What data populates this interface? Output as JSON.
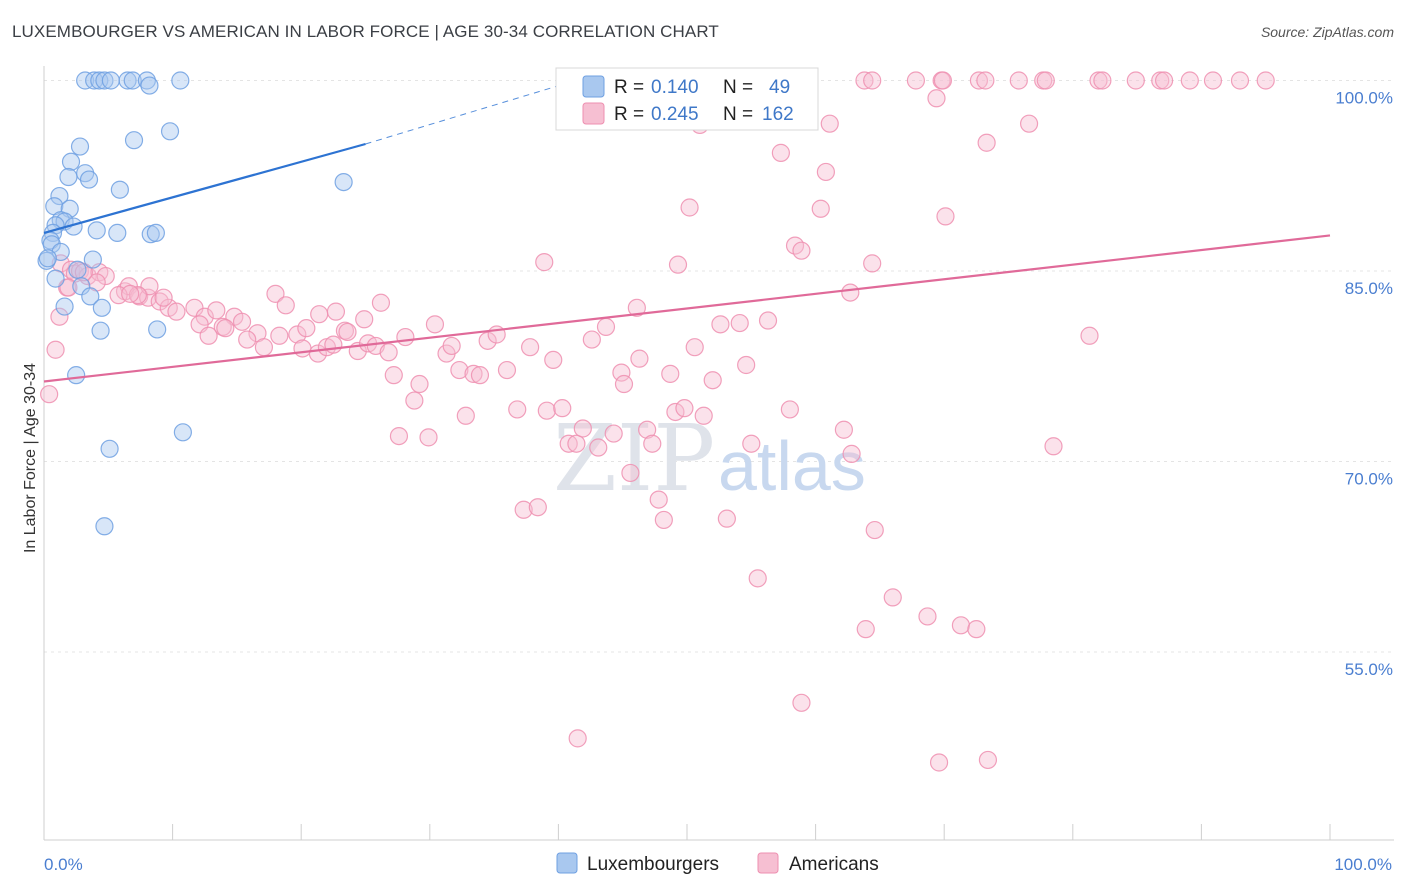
{
  "header": {
    "title": "LUXEMBOURGER VS AMERICAN IN LABOR FORCE | AGE 30-34 CORRELATION CHART",
    "source": "Source: ZipAtlas.com"
  },
  "colors": {
    "blue": "#6fa0e2",
    "blue_fill": "#a9c8ef",
    "blue_line": "#2d73d2",
    "pink": "#ee8fb0",
    "pink_fill": "#f6bfd2",
    "pink_line": "#e06a99",
    "axis_text": "#4a7ed0",
    "grid": "#e4e4e4"
  },
  "watermark": {
    "zip": "ZIP",
    "atlas": "atlas"
  },
  "chart_data": {
    "type": "scatter",
    "title": "LUXEMBOURGER VS AMERICAN IN LABOR FORCE | AGE 30-34 CORRELATION CHART",
    "xlabel": "",
    "ylabel": "In Labor Force | Age 30-34",
    "xlim": [
      0,
      100
    ],
    "ylim": [
      40,
      101
    ],
    "x_tick_labels": [
      "0.0%",
      "100.0%"
    ],
    "y_ticks": [
      {
        "value": 100,
        "label": "100.0%"
      },
      {
        "value": 85,
        "label": "85.0%"
      },
      {
        "value": 70,
        "label": "70.0%"
      },
      {
        "value": 55,
        "label": "55.0%"
      }
    ],
    "legend": {
      "entries": [
        {
          "r_label": "R =",
          "r": "0.140",
          "n_label": "N =",
          "n": "49"
        },
        {
          "r_label": "R =",
          "r": "0.245",
          "n_label": "N =",
          "n": "162"
        }
      ]
    },
    "bottom_legend": [
      "Luxembourgers",
      "Americans"
    ],
    "series": [
      {
        "name": "Luxembourgers",
        "trend": {
          "x0": 0,
          "y0": 88.0,
          "x1": 25,
          "y1": 95.0,
          "dash_to_x": 42,
          "dash_to_y": 100.2
        },
        "points": [
          [
            3.2,
            100
          ],
          [
            3.9,
            100
          ],
          [
            4.3,
            100
          ],
          [
            4.7,
            100
          ],
          [
            5.2,
            100
          ],
          [
            6.5,
            100
          ],
          [
            6.9,
            100
          ],
          [
            8.0,
            100
          ],
          [
            8.2,
            99.6
          ],
          [
            10.6,
            100
          ],
          [
            9.8,
            96.0
          ],
          [
            7.0,
            95.3
          ],
          [
            2.8,
            94.8
          ],
          [
            2.1,
            93.6
          ],
          [
            3.2,
            92.7
          ],
          [
            3.5,
            92.2
          ],
          [
            1.9,
            92.4
          ],
          [
            23.3,
            92.0
          ],
          [
            5.9,
            91.4
          ],
          [
            1.2,
            90.9
          ],
          [
            0.8,
            90.1
          ],
          [
            2.0,
            89.9
          ],
          [
            1.3,
            89.0
          ],
          [
            1.6,
            88.9
          ],
          [
            0.9,
            88.6
          ],
          [
            2.3,
            88.5
          ],
          [
            4.1,
            88.2
          ],
          [
            5.7,
            88.0
          ],
          [
            8.3,
            87.9
          ],
          [
            8.7,
            88.0
          ],
          [
            0.7,
            88.0
          ],
          [
            0.5,
            87.4
          ],
          [
            0.6,
            87.1
          ],
          [
            1.3,
            86.5
          ],
          [
            3.8,
            85.9
          ],
          [
            0.2,
            85.8
          ],
          [
            2.6,
            85.1
          ],
          [
            0.9,
            84.4
          ],
          [
            2.9,
            83.8
          ],
          [
            3.6,
            83.0
          ],
          [
            1.6,
            82.2
          ],
          [
            4.5,
            82.1
          ],
          [
            4.4,
            80.3
          ],
          [
            8.8,
            80.4
          ],
          [
            2.5,
            76.8
          ],
          [
            10.8,
            72.3
          ],
          [
            5.1,
            71.0
          ],
          [
            4.7,
            64.9
          ],
          [
            0.3,
            86.0
          ]
        ]
      },
      {
        "name": "Americans",
        "trend": {
          "x0": 0,
          "y0": 76.3,
          "x1": 100,
          "y1": 87.8
        },
        "points": [
          [
            53.6,
            100
          ],
          [
            55.1,
            100
          ],
          [
            59.5,
            100
          ],
          [
            63.8,
            100
          ],
          [
            64.4,
            100
          ],
          [
            67.8,
            100
          ],
          [
            69.8,
            100
          ],
          [
            69.9,
            100
          ],
          [
            72.7,
            100
          ],
          [
            73.2,
            100
          ],
          [
            75.8,
            100
          ],
          [
            77.7,
            100
          ],
          [
            77.9,
            100
          ],
          [
            82.0,
            100
          ],
          [
            82.3,
            100
          ],
          [
            84.9,
            100
          ],
          [
            86.8,
            100
          ],
          [
            87.1,
            100
          ],
          [
            89.1,
            100
          ],
          [
            90.9,
            100
          ],
          [
            93.0,
            100
          ],
          [
            95.0,
            100
          ],
          [
            69.4,
            98.6
          ],
          [
            51.0,
            96.5
          ],
          [
            61.1,
            96.6
          ],
          [
            76.6,
            96.6
          ],
          [
            73.3,
            95.1
          ],
          [
            57.3,
            94.3
          ],
          [
            60.8,
            92.8
          ],
          [
            50.2,
            90.0
          ],
          [
            60.4,
            89.9
          ],
          [
            70.1,
            89.3
          ],
          [
            58.4,
            87.0
          ],
          [
            58.9,
            86.6
          ],
          [
            38.9,
            85.7
          ],
          [
            49.3,
            85.5
          ],
          [
            64.4,
            85.6
          ],
          [
            81.3,
            79.9
          ],
          [
            62.7,
            83.3
          ],
          [
            1.3,
            85.6
          ],
          [
            2.1,
            85.1
          ],
          [
            2.4,
            84.8
          ],
          [
            2.8,
            85.0
          ],
          [
            3.4,
            84.6
          ],
          [
            4.3,
            84.9
          ],
          [
            4.8,
            84.6
          ],
          [
            4.1,
            84.1
          ],
          [
            1.8,
            83.7
          ],
          [
            6.3,
            83.4
          ],
          [
            6.6,
            83.8
          ],
          [
            7.4,
            83.0
          ],
          [
            5.8,
            83.1
          ],
          [
            8.1,
            82.9
          ],
          [
            8.2,
            83.8
          ],
          [
            7.3,
            83.1
          ],
          [
            9.0,
            82.6
          ],
          [
            9.7,
            82.1
          ],
          [
            10.3,
            81.8
          ],
          [
            11.7,
            82.1
          ],
          [
            12.5,
            81.4
          ],
          [
            13.4,
            81.9
          ],
          [
            14.8,
            81.4
          ],
          [
            15.4,
            81.0
          ],
          [
            12.1,
            80.8
          ],
          [
            13.9,
            80.6
          ],
          [
            14.1,
            80.5
          ],
          [
            12.8,
            79.9
          ],
          [
            16.6,
            80.1
          ],
          [
            15.8,
            79.6
          ],
          [
            17.1,
            79.0
          ],
          [
            18.0,
            83.2
          ],
          [
            18.8,
            82.3
          ],
          [
            19.7,
            80.0
          ],
          [
            18.3,
            79.9
          ],
          [
            20.1,
            78.9
          ],
          [
            20.4,
            80.5
          ],
          [
            21.3,
            78.5
          ],
          [
            21.4,
            81.6
          ],
          [
            22.0,
            79.0
          ],
          [
            22.5,
            79.2
          ],
          [
            22.7,
            81.8
          ],
          [
            23.4,
            80.3
          ],
          [
            23.6,
            80.2
          ],
          [
            24.4,
            78.7
          ],
          [
            24.9,
            81.2
          ],
          [
            25.2,
            79.3
          ],
          [
            25.8,
            79.1
          ],
          [
            26.2,
            82.5
          ],
          [
            26.8,
            78.6
          ],
          [
            27.2,
            76.8
          ],
          [
            27.6,
            72.0
          ],
          [
            28.1,
            79.8
          ],
          [
            28.8,
            74.8
          ],
          [
            29.2,
            76.1
          ],
          [
            29.9,
            71.9
          ],
          [
            30.4,
            80.8
          ],
          [
            31.3,
            78.5
          ],
          [
            31.7,
            79.1
          ],
          [
            32.3,
            77.2
          ],
          [
            32.8,
            73.6
          ],
          [
            33.4,
            76.9
          ],
          [
            33.9,
            76.8
          ],
          [
            34.5,
            79.5
          ],
          [
            35.2,
            80.0
          ],
          [
            36.0,
            77.2
          ],
          [
            36.8,
            74.1
          ],
          [
            37.3,
            66.2
          ],
          [
            37.8,
            79.0
          ],
          [
            38.4,
            66.4
          ],
          [
            39.1,
            74.0
          ],
          [
            39.6,
            78.0
          ],
          [
            40.3,
            74.2
          ],
          [
            40.8,
            71.4
          ],
          [
            41.4,
            71.4
          ],
          [
            41.9,
            72.6
          ],
          [
            42.6,
            79.6
          ],
          [
            43.1,
            71.1
          ],
          [
            43.7,
            80.6
          ],
          [
            44.3,
            72.2
          ],
          [
            44.9,
            77.0
          ],
          [
            45.1,
            76.1
          ],
          [
            45.6,
            69.1
          ],
          [
            46.1,
            82.1
          ],
          [
            46.3,
            78.1
          ],
          [
            46.9,
            72.5
          ],
          [
            47.3,
            71.4
          ],
          [
            47.8,
            67.0
          ],
          [
            48.2,
            65.4
          ],
          [
            48.7,
            76.9
          ],
          [
            49.1,
            73.9
          ],
          [
            49.8,
            74.2
          ],
          [
            50.6,
            79.0
          ],
          [
            51.3,
            73.6
          ],
          [
            52.0,
            76.4
          ],
          [
            52.6,
            80.8
          ],
          [
            53.1,
            65.5
          ],
          [
            54.1,
            80.9
          ],
          [
            54.6,
            77.6
          ],
          [
            55.0,
            71.4
          ],
          [
            56.3,
            81.1
          ],
          [
            55.5,
            60.8
          ],
          [
            58.0,
            74.1
          ],
          [
            58.9,
            51.0
          ],
          [
            62.2,
            72.5
          ],
          [
            62.8,
            70.6
          ],
          [
            63.9,
            56.8
          ],
          [
            64.6,
            64.6
          ],
          [
            66.0,
            59.3
          ],
          [
            68.7,
            57.8
          ],
          [
            71.3,
            57.1
          ],
          [
            72.5,
            56.8
          ],
          [
            73.4,
            46.5
          ],
          [
            78.5,
            71.2
          ],
          [
            69.6,
            46.3
          ],
          [
            41.5,
            48.2
          ],
          [
            1.2,
            81.4
          ],
          [
            0.9,
            78.8
          ],
          [
            0.4,
            75.3
          ],
          [
            1.9,
            83.7
          ],
          [
            3.1,
            84.9
          ],
          [
            6.7,
            83.2
          ],
          [
            9.3,
            82.9
          ]
        ]
      }
    ]
  }
}
